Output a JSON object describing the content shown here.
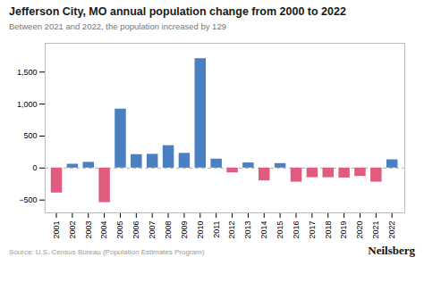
{
  "chart_data": {
    "type": "bar",
    "title": "Jefferson City, MO annual population change from 2000 to 2022",
    "subtitle": "Between 2021 and 2022, the population increased by 129",
    "annotations": [
      "Source: U.S. Census Bureau (Population Estimates Program)",
      "Neilsberg"
    ],
    "x": [
      2001,
      2002,
      2003,
      2004,
      2005,
      2006,
      2007,
      2008,
      2009,
      2010,
      2011,
      2012,
      2013,
      2014,
      2015,
      2016,
      2017,
      2018,
      2019,
      2020,
      2021,
      2022
    ],
    "values": [
      -390,
      60,
      90,
      -540,
      920,
      210,
      215,
      350,
      230,
      1710,
      140,
      -75,
      80,
      -200,
      70,
      -220,
      -150,
      -150,
      -155,
      -130,
      -220,
      129
    ],
    "colors": [
      "#e05c7e",
      "#4a7fc1",
      "#4a7fc1",
      "#e05c7e",
      "#4a7fc1",
      "#4a7fc1",
      "#4a7fc1",
      "#4a7fc1",
      "#4a7fc1",
      "#4a7fc1",
      "#4a7fc1",
      "#e05c7e",
      "#4a7fc1",
      "#e05c7e",
      "#4a7fc1",
      "#e05c7e",
      "#e05c7e",
      "#e05c7e",
      "#e05c7e",
      "#e05c7e",
      "#e05c7e",
      "#4a7fc1"
    ],
    "xlim": [
      2000.3,
      2022.8
    ],
    "xticks": [
      2001,
      2002,
      2003,
      2004,
      2005,
      2006,
      2007,
      2008,
      2009,
      2010,
      2011,
      2012,
      2013,
      2014,
      2015,
      2016,
      2017,
      2018,
      2019,
      2020,
      2021,
      2022
    ],
    "ylim": [
      -700,
      1950
    ],
    "yticks": [
      -500,
      0,
      500,
      1000,
      1500
    ],
    "grid": false
  }
}
